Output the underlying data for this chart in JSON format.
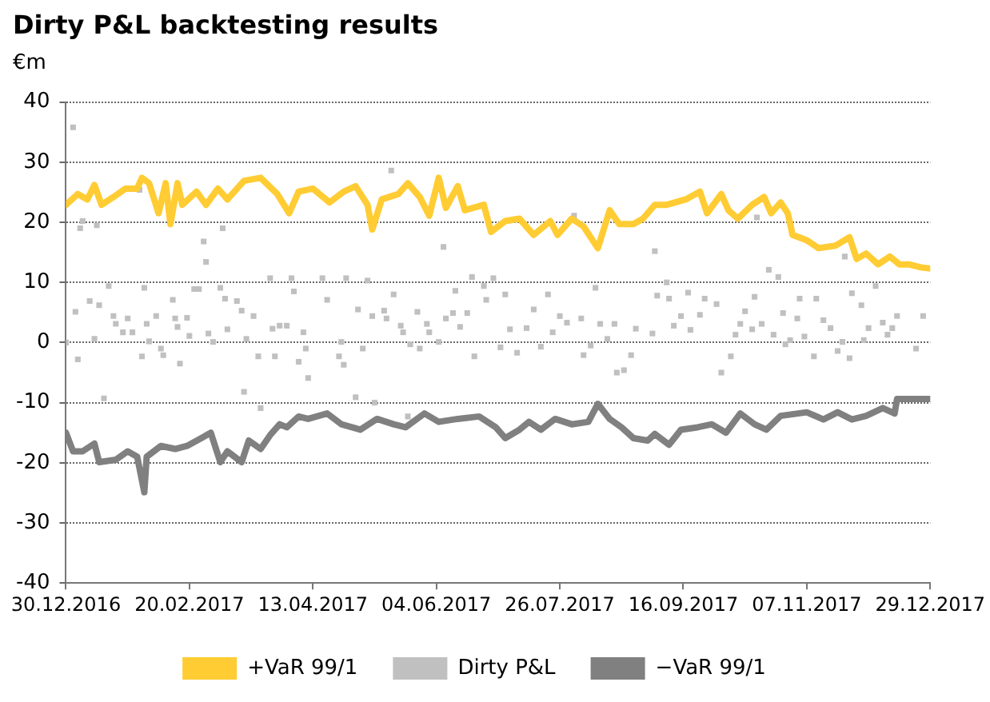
{
  "chart_data": {
    "type": "line",
    "title": "Dirty P&L backtesting results",
    "ylabel": "€m",
    "xlim": [
      "2016-12-30",
      "2017-12-29"
    ],
    "xticks": [
      {
        "value": "2016-12-30",
        "label": "30.12.2016"
      },
      {
        "value": "2017-02-20",
        "label": "20.02.2017"
      },
      {
        "value": "2017-04-13",
        "label": "13.04.2017"
      },
      {
        "value": "2017-06-04",
        "label": "04.06.2017"
      },
      {
        "value": "2017-07-26",
        "label": "26.07.2017"
      },
      {
        "value": "2017-09-16",
        "label": "16.09.2017"
      },
      {
        "value": "2017-11-07",
        "label": "07.11.2017"
      },
      {
        "value": "2017-12-29",
        "label": "29.12.2017"
      }
    ],
    "ylim": [
      -40,
      40
    ],
    "yticks": [
      -40,
      -30,
      -20,
      -10,
      0,
      10,
      20,
      30,
      40
    ],
    "grid": "y",
    "legend": "bottom",
    "marker": "none",
    "line_style": "solid",
    "series": [
      {
        "name": "+VaR 99/1",
        "type": "line",
        "color": "#ffcc33",
        "x": [
          "2016-12-30",
          "2017-01-04",
          "2017-01-08",
          "2017-01-11",
          "2017-01-14",
          "2017-01-19",
          "2017-01-24",
          "2017-01-29",
          "2017-01-31",
          "2017-02-03",
          "2017-02-07",
          "2017-02-10",
          "2017-02-12",
          "2017-02-15",
          "2017-02-17",
          "2017-02-23",
          "2017-02-27",
          "2017-03-04",
          "2017-03-08",
          "2017-03-15",
          "2017-03-22",
          "2017-03-29",
          "2017-04-03",
          "2017-04-07",
          "2017-04-13",
          "2017-04-20",
          "2017-04-26",
          "2017-05-01",
          "2017-05-06",
          "2017-05-08",
          "2017-05-12",
          "2017-05-19",
          "2017-05-23",
          "2017-05-28",
          "2017-06-01",
          "2017-06-05",
          "2017-06-08",
          "2017-06-13",
          "2017-06-16",
          "2017-06-24",
          "2017-06-27",
          "2017-07-03",
          "2017-07-09",
          "2017-07-15",
          "2017-07-22",
          "2017-07-25",
          "2017-07-31",
          "2017-08-05",
          "2017-08-11",
          "2017-08-16",
          "2017-08-20",
          "2017-08-26",
          "2017-08-30",
          "2017-09-04",
          "2017-09-09",
          "2017-09-17",
          "2017-09-23",
          "2017-09-26",
          "2017-10-02",
          "2017-10-05",
          "2017-10-09",
          "2017-10-15",
          "2017-10-20",
          "2017-10-23",
          "2017-10-27",
          "2017-10-30",
          "2017-11-01",
          "2017-11-07",
          "2017-11-12",
          "2017-11-19",
          "2017-11-25",
          "2017-11-28",
          "2017-12-02",
          "2017-12-07",
          "2017-12-12",
          "2017-12-16",
          "2017-12-20",
          "2017-12-25",
          "2017-12-29"
        ],
        "values": [
          22.9,
          24.7,
          23.8,
          26.2,
          22.9,
          24.2,
          25.6,
          25.6,
          27.4,
          26.5,
          21.5,
          26.5,
          19.7,
          26.5,
          22.9,
          25.1,
          22.9,
          25.6,
          23.8,
          26.9,
          27.4,
          24.7,
          21.5,
          25.1,
          25.6,
          23.3,
          25.1,
          26,
          22.9,
          18.8,
          23.8,
          24.7,
          26.5,
          24.2,
          21.1,
          27.4,
          22.4,
          26,
          22,
          22.9,
          18.4,
          20.2,
          20.6,
          17.9,
          20.2,
          17.9,
          20.6,
          19.3,
          15.7,
          22,
          19.7,
          19.7,
          20.6,
          22.9,
          22.9,
          23.8,
          25.1,
          21.5,
          24.7,
          22,
          20.6,
          22.9,
          24.2,
          21.5,
          23.3,
          21.5,
          17.9,
          17,
          15.7,
          16.1,
          17.5,
          13.9,
          14.8,
          13,
          14.3,
          13,
          13,
          12.5,
          12.3
        ]
      },
      {
        "name": "Dirty P&L",
        "type": "scatter",
        "marker": "square",
        "color": "#c0c0c0",
        "x": [
          "2016-12-30",
          "2017-01-02",
          "2017-01-03",
          "2017-01-04",
          "2017-01-05",
          "2017-01-06",
          "2017-01-09",
          "2017-01-11",
          "2017-01-12",
          "2017-01-13",
          "2017-01-15",
          "2017-01-17",
          "2017-01-19",
          "2017-01-20",
          "2017-01-23",
          "2017-01-25",
          "2017-01-27",
          "2017-01-30",
          "2017-01-31",
          "2017-02-01",
          "2017-02-02",
          "2017-02-03",
          "2017-02-06",
          "2017-02-08",
          "2017-02-09",
          "2017-02-13",
          "2017-02-14",
          "2017-02-15",
          "2017-02-16",
          "2017-02-19",
          "2017-02-20",
          "2017-02-22",
          "2017-02-24",
          "2017-02-26",
          "2017-02-27",
          "2017-02-28",
          "2017-03-02",
          "2017-03-05",
          "2017-03-06",
          "2017-03-07",
          "2017-03-08",
          "2017-03-12",
          "2017-03-14",
          "2017-03-15",
          "2017-03-16",
          "2017-03-19",
          "2017-03-21",
          "2017-03-22",
          "2017-03-26",
          "2017-03-27",
          "2017-03-28",
          "2017-03-30",
          "2017-04-02",
          "2017-04-04",
          "2017-04-05",
          "2017-04-07",
          "2017-04-09",
          "2017-04-10",
          "2017-04-11",
          "2017-04-17",
          "2017-04-19",
          "2017-04-24",
          "2017-04-25",
          "2017-04-26",
          "2017-04-27",
          "2017-05-01",
          "2017-05-02",
          "2017-05-04",
          "2017-05-06",
          "2017-05-08",
          "2017-05-09",
          "2017-05-13",
          "2017-05-14",
          "2017-05-16",
          "2017-05-17",
          "2017-05-20",
          "2017-05-21",
          "2017-05-23",
          "2017-05-24",
          "2017-05-27",
          "2017-05-28",
          "2017-05-31",
          "2017-06-01",
          "2017-06-05",
          "2017-06-07",
          "2017-06-08",
          "2017-06-11",
          "2017-06-12",
          "2017-06-14",
          "2017-06-17",
          "2017-06-19",
          "2017-06-20",
          "2017-06-24",
          "2017-06-25",
          "2017-06-28",
          "2017-07-01",
          "2017-07-03",
          "2017-07-05",
          "2017-07-08",
          "2017-07-12",
          "2017-07-15",
          "2017-07-18",
          "2017-07-21",
          "2017-07-23",
          "2017-07-26",
          "2017-07-29",
          "2017-08-01",
          "2017-08-04",
          "2017-08-05",
          "2017-08-08",
          "2017-08-10",
          "2017-08-12",
          "2017-08-15",
          "2017-08-18",
          "2017-08-19",
          "2017-08-22",
          "2017-08-25",
          "2017-08-27",
          "2017-09-03",
          "2017-09-04",
          "2017-09-05",
          "2017-09-09",
          "2017-09-10",
          "2017-09-12",
          "2017-09-15",
          "2017-09-18",
          "2017-09-19",
          "2017-09-23",
          "2017-09-25",
          "2017-09-30",
          "2017-10-02",
          "2017-10-06",
          "2017-10-08",
          "2017-10-10",
          "2017-10-12",
          "2017-10-15",
          "2017-10-16",
          "2017-10-17",
          "2017-10-19",
          "2017-10-22",
          "2017-10-24",
          "2017-10-26",
          "2017-10-28",
          "2017-10-29",
          "2017-10-31",
          "2017-11-03",
          "2017-11-04",
          "2017-11-06",
          "2017-11-10",
          "2017-11-11",
          "2017-11-14",
          "2017-11-17",
          "2017-11-20",
          "2017-11-22",
          "2017-11-23",
          "2017-11-25",
          "2017-11-26",
          "2017-11-30",
          "2017-12-01",
          "2017-12-03",
          "2017-12-06",
          "2017-12-09",
          "2017-12-11",
          "2017-12-13",
          "2017-12-15",
          "2017-12-23",
          "2017-12-26"
        ],
        "values": [
          0,
          35.8,
          5.1,
          -2.8,
          19,
          20.2,
          6.9,
          0.6,
          19.5,
          6.2,
          -9.3,
          9.4,
          4.4,
          3.1,
          1.7,
          4,
          1.7,
          25.4,
          -2.3,
          9.1,
          3.1,
          0.2,
          4.4,
          -1,
          -2.1,
          7.1,
          4,
          2.6,
          -3.5,
          4.1,
          1.1,
          8.9,
          8.9,
          16.8,
          13.4,
          1.5,
          0.1,
          9.1,
          19,
          7.3,
          2.2,
          6.9,
          5.3,
          -8.2,
          0.6,
          4.4,
          -2.3,
          -10.9,
          10.7,
          2.3,
          -2.3,
          2.8,
          2.8,
          10.7,
          8.5,
          -3.2,
          1.7,
          -1,
          -5.9,
          10.7,
          7.1,
          -2.3,
          0.1,
          -3.7,
          10.7,
          -9.1,
          5.5,
          -1,
          10.3,
          4.4,
          -10,
          5.3,
          4,
          28.6,
          8,
          2.8,
          1.7,
          -12.3,
          -0.3,
          5.1,
          -1,
          3.1,
          1.7,
          0.1,
          15.9,
          4,
          4.9,
          8.6,
          2.6,
          4.9,
          10.9,
          -2.3,
          9.4,
          7.1,
          10.7,
          -0.8,
          8,
          2.2,
          -1.7,
          2.4,
          5.5,
          -0.7,
          8,
          1.7,
          4.4,
          3.3,
          21.1,
          4,
          -2.1,
          -0.5,
          9.1,
          3.1,
          0.6,
          3.1,
          -5,
          -4.6,
          -2.1,
          2.3,
          1.5,
          15.2,
          7.8,
          10,
          7.3,
          2.8,
          4.4,
          8.3,
          2.1,
          4.6,
          7.3,
          6.4,
          -5,
          -2.3,
          1.3,
          3.1,
          5.2,
          2.2,
          7.6,
          20.8,
          3.1,
          12.1,
          1.3,
          10.9,
          4.9,
          -0.3,
          0.4,
          4,
          7.3,
          1,
          -2.3,
          7.3,
          3.7,
          2.4,
          -1.4,
          0.1,
          14.3,
          -2.6,
          8.2,
          6.2,
          0.4,
          2.4,
          9.4,
          3.3,
          1.3,
          2.4,
          4.4,
          -1,
          4.4
        ]
      },
      {
        "name": "−VaR 99/1",
        "type": "line",
        "color": "#808080",
        "x": [
          "2016-12-30",
          "2017-01-02",
          "2017-01-06",
          "2017-01-11",
          "2017-01-13",
          "2017-01-20",
          "2017-01-25",
          "2017-01-29",
          "2017-02-01",
          "2017-02-02",
          "2017-02-08",
          "2017-02-14",
          "2017-02-19",
          "2017-02-25",
          "2017-03-01",
          "2017-03-05",
          "2017-03-08",
          "2017-03-14",
          "2017-03-17",
          "2017-03-22",
          "2017-03-26",
          "2017-03-30",
          "2017-04-02",
          "2017-04-07",
          "2017-04-11",
          "2017-04-19",
          "2017-04-25",
          "2017-05-03",
          "2017-05-10",
          "2017-05-17",
          "2017-05-22",
          "2017-05-30",
          "2017-06-05",
          "2017-06-13",
          "2017-06-22",
          "2017-06-29",
          "2017-07-03",
          "2017-07-09",
          "2017-07-13",
          "2017-07-18",
          "2017-07-24",
          "2017-07-31",
          "2017-08-07",
          "2017-08-11",
          "2017-08-16",
          "2017-08-21",
          "2017-08-26",
          "2017-09-01",
          "2017-09-04",
          "2017-09-10",
          "2017-09-15",
          "2017-09-22",
          "2017-09-28",
          "2017-10-04",
          "2017-10-10",
          "2017-10-16",
          "2017-10-21",
          "2017-10-27",
          "2017-11-07",
          "2017-11-14",
          "2017-11-20",
          "2017-11-26",
          "2017-12-02",
          "2017-12-09",
          "2017-12-14",
          "2017-12-15",
          "2017-12-25",
          "2017-12-29"
        ],
        "values": [
          -15,
          -18.1,
          -18.1,
          -16.8,
          -19.9,
          -19.5,
          -18.1,
          -19,
          -24.9,
          -19,
          -17.2,
          -17.7,
          -17.2,
          -15.9,
          -15,
          -19.9,
          -18.1,
          -19.9,
          -16.3,
          -17.7,
          -15.4,
          -13.6,
          -14.1,
          -12.3,
          -12.7,
          -11.8,
          -13.6,
          -14.5,
          -12.7,
          -13.6,
          -14.1,
          -11.8,
          -13.2,
          -12.7,
          -12.3,
          -14.1,
          -15.9,
          -14.5,
          -13.2,
          -14.5,
          -12.7,
          -13.6,
          -13.2,
          -10.2,
          -12.7,
          -14.1,
          -15.9,
          -16.3,
          -15.2,
          -17,
          -14.5,
          -14.1,
          -13.6,
          -15,
          -11.8,
          -13.6,
          -14.5,
          -12.2,
          -11.6,
          -12.8,
          -11.6,
          -12.8,
          -12.2,
          -10.9,
          -11.8,
          -9.4,
          -9.4,
          -9.4
        ]
      }
    ]
  }
}
